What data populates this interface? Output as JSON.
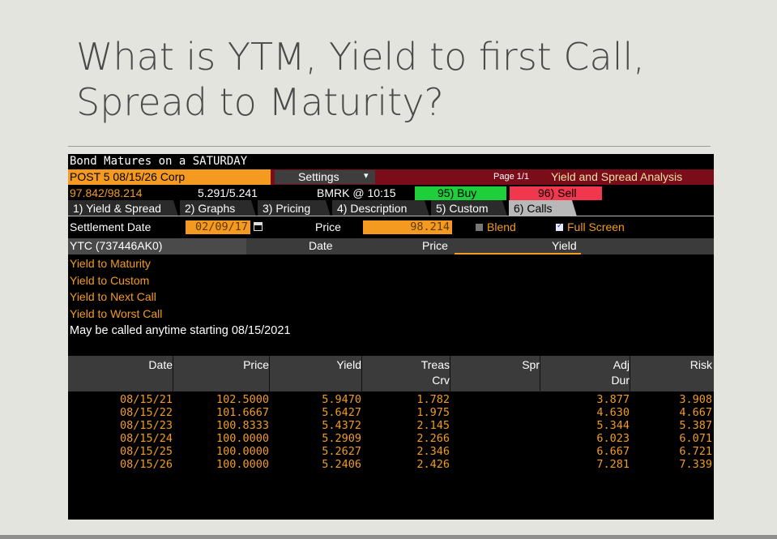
{
  "slide": {
    "title_line1": "What is YTM, Yield to first Call,",
    "title_line2": "Spread to Maturity?"
  },
  "terminal": {
    "header": "Bond Matures on a SATURDAY",
    "security": "POST 5 08/15/26 Corp",
    "settings_label": "Settings",
    "settings_arrow": "▾",
    "page": "Page 1/1",
    "screen_title": "Yield and Spread Analysis",
    "bid_ask_price": "97.842/98.214",
    "bid_ask_yield": "5.291/5.241",
    "bmrk": "BMRK @ 10:15",
    "buy": "95) Buy",
    "sell": "96) Sell",
    "tabs": [
      {
        "label": "1) Yield & Spread",
        "active": false
      },
      {
        "label": "2) Graphs",
        "active": false
      },
      {
        "label": "3) Pricing",
        "active": false
      },
      {
        "label": "4) Description",
        "active": false
      },
      {
        "label": "5) Custom",
        "active": false
      },
      {
        "label": "6) Calls",
        "active": true
      }
    ],
    "settlement_label": "Settlement Date",
    "settlement_value": "02/09/17",
    "price_label": "Price",
    "price_value": "98.214",
    "blend_label": "Blend",
    "full_screen_label": "Full Screen",
    "grid_headers": {
      "ytc": "YTC (737446AK0)",
      "date": "Date",
      "price": "Price",
      "yield": "Yield"
    },
    "menu": [
      "Yield to Maturity",
      "Yield to Custom",
      "Yield to Next Call",
      "Yield to Worst Call"
    ],
    "call_note": "May be called anytime starting 08/15/2021",
    "table_headers": {
      "date": "Date",
      "price": "Price",
      "yield": "Yield",
      "treas1": "Treas",
      "treas2": "Crv",
      "spr": "Spr",
      "adj1": "Adj",
      "adj2": "Dur",
      "risk": "Risk"
    },
    "rows": [
      {
        "date": "08/15/21",
        "price": "102.5000",
        "yield": "5.9470",
        "treas": "1.782",
        "spr": "",
        "dur": "3.877",
        "risk": "3.908"
      },
      {
        "date": "08/15/22",
        "price": "101.6667",
        "yield": "5.6427",
        "treas": "1.975",
        "spr": "",
        "dur": "4.630",
        "risk": "4.667"
      },
      {
        "date": "08/15/23",
        "price": "100.8333",
        "yield": "5.4372",
        "treas": "2.145",
        "spr": "",
        "dur": "5.344",
        "risk": "5.387"
      },
      {
        "date": "08/15/24",
        "price": "100.0000",
        "yield": "5.2909",
        "treas": "2.266",
        "spr": "",
        "dur": "6.023",
        "risk": "6.071"
      },
      {
        "date": "08/15/25",
        "price": "100.0000",
        "yield": "5.2627",
        "treas": "2.346",
        "spr": "",
        "dur": "6.667",
        "risk": "6.721"
      },
      {
        "date": "08/15/26",
        "price": "100.0000",
        "yield": "5.2406",
        "treas": "2.426",
        "spr": "",
        "dur": "7.281",
        "risk": "7.339"
      }
    ],
    "colors": {
      "amber": "#f39c1e",
      "buy_green": "#1fce3b",
      "sell_red": "#f0374e",
      "security_orange": "#f59a21",
      "banner_maroon": "#7a0d19"
    }
  }
}
